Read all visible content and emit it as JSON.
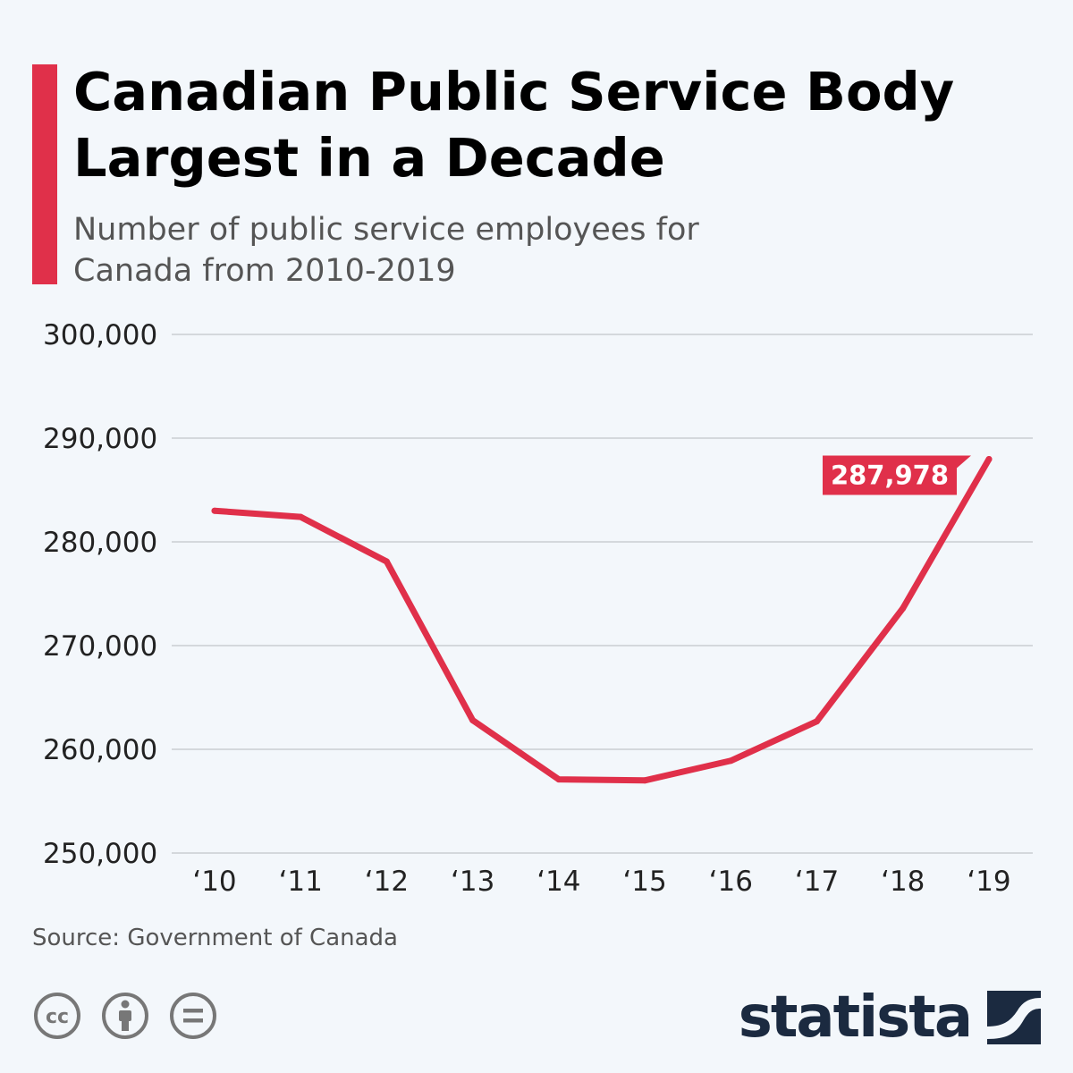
{
  "header": {
    "title": "Canadian Public Service Body Largest in a Decade",
    "subtitle": "Number of public service employees for Canada from 2010-2019"
  },
  "colors": {
    "accent": "#e0304a",
    "line": "#e0304a",
    "background": "#f3f7fb",
    "brand": "#1b2a40"
  },
  "chart_data": {
    "type": "line",
    "title": "Canadian Public Service Body Largest in a Decade",
    "subtitle": "Number of public service employees for Canada from 2010-2019",
    "xlabel": "",
    "ylabel": "",
    "categories": [
      "‘10",
      "‘11",
      "‘12",
      "‘13",
      "‘14",
      "‘15",
      "‘16",
      "‘17",
      "‘18",
      "‘19"
    ],
    "series": [
      {
        "name": "Public service employees",
        "values": [
          283000,
          282400,
          278100,
          262800,
          257100,
          257000,
          258900,
          262700,
          273600,
          287978
        ]
      }
    ],
    "ylim": [
      250000,
      300000
    ],
    "yticks": [
      250000,
      260000,
      270000,
      280000,
      290000,
      300000
    ],
    "ytick_labels": [
      "250,000",
      "260,000",
      "270,000",
      "280,000",
      "290,000",
      "300,000"
    ],
    "grid": true,
    "annotation": {
      "category": "‘19",
      "label": "287,978"
    }
  },
  "footer": {
    "source": "Source: Government of Canada",
    "brand": "statista",
    "license_icons": [
      "cc-icon",
      "attribution-icon",
      "no-derivatives-icon"
    ]
  }
}
